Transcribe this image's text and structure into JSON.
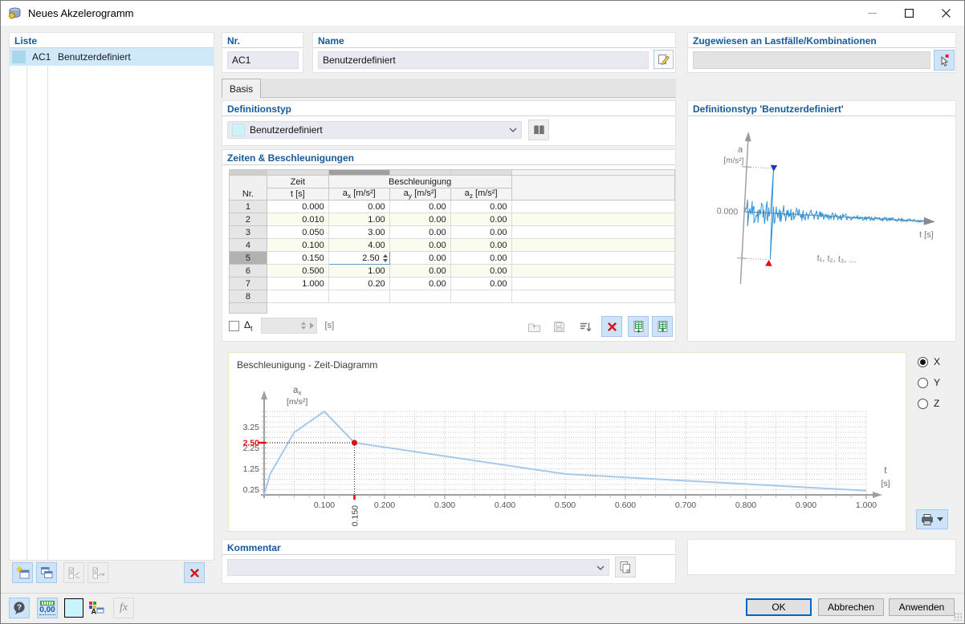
{
  "window": {
    "title": "Neues Akzelerogramm"
  },
  "list_panel": {
    "header": "Liste",
    "items": [
      {
        "id": "AC1",
        "name": "Benutzerdefiniert",
        "swatch_color": "#a9d7ee"
      }
    ]
  },
  "fields": {
    "nr": {
      "label": "Nr.",
      "value": "AC1"
    },
    "name": {
      "label": "Name",
      "value": "Benutzerdefiniert"
    },
    "assigned": {
      "label": "Zugewiesen an Lastfälle/Kombinationen",
      "value": ""
    }
  },
  "tab": {
    "label": "Basis"
  },
  "definition_type": {
    "header": "Definitionstyp",
    "selected": "Benutzerdefiniert"
  },
  "accel_table": {
    "header": "Zeiten & Beschleunigungen",
    "col_nr": "Nr.",
    "group_time": "Zeit",
    "col_time": "t [s]",
    "group_accel": "Beschleunigung",
    "cols_accel": [
      {
        "base": "a",
        "sub": "x",
        "unit": "[m/s²]"
      },
      {
        "base": "a",
        "sub": "y",
        "unit": "[m/s²]"
      },
      {
        "base": "a",
        "sub": "z",
        "unit": "[m/s²]"
      }
    ],
    "rows": [
      {
        "nr": "1",
        "t": "0.000",
        "ax": "0.00",
        "ay": "0.00",
        "az": "0.00"
      },
      {
        "nr": "2",
        "t": "0.010",
        "ax": "1.00",
        "ay": "0.00",
        "az": "0.00"
      },
      {
        "nr": "3",
        "t": "0.050",
        "ax": "3.00",
        "ay": "0.00",
        "az": "0.00"
      },
      {
        "nr": "4",
        "t": "0.100",
        "ax": "4.00",
        "ay": "0.00",
        "az": "0.00"
      },
      {
        "nr": "5",
        "t": "0.150",
        "ax": "2.50",
        "ay": "0.00",
        "az": "0.00"
      },
      {
        "nr": "6",
        "t": "0.500",
        "ax": "1.00",
        "ay": "0.00",
        "az": "0.00"
      },
      {
        "nr": "7",
        "t": "1.000",
        "ax": "0.20",
        "ay": "0.00",
        "az": "0.00"
      },
      {
        "nr": "8",
        "t": "",
        "ax": "",
        "ay": "",
        "az": ""
      }
    ],
    "selected_row": 5,
    "edit_value": "2.50"
  },
  "dt_row": {
    "symbol": "Δ",
    "sub": "t",
    "unit": "[s]",
    "checked": false,
    "value": ""
  },
  "type_preview": {
    "header": "Definitionstyp 'Benutzerdefiniert'",
    "ylabel_base": "a",
    "ylabel_unit": "[m/s²]",
    "zero_label": "0.000",
    "xlabel": "t [s]",
    "points_label": "t₁, t₂, t₃, ...",
    "wave_color": "#2e94d6",
    "max_marker_color": "#2038c8",
    "min_marker_color": "#e01010"
  },
  "diagram": {
    "title": "Beschleunigung - Zeit-Diagramm"
  },
  "axis_selector": {
    "options": [
      "X",
      "Y",
      "Z"
    ],
    "selected": "X"
  },
  "comment": {
    "header": "Kommentar",
    "value": ""
  },
  "dialog_buttons": {
    "ok": "OK",
    "cancel": "Abbrechen",
    "apply": "Anwenden"
  },
  "statusbar": {
    "help_glyph": "?",
    "units_label": "0,00",
    "display_glyph": "A",
    "fx_label": "fx"
  },
  "chart_data": {
    "type": "line",
    "title": "Beschleunigung - Zeit-Diagramm",
    "xlabel": "t [s]",
    "ylabel": "ax [m/s²]",
    "xlabel_base": "t",
    "xlabel_unit": "[s]",
    "ylabel_base": "a",
    "ylabel_sub": "x",
    "ylabel_unit": "[m/s²]",
    "x": [
      0.0,
      0.01,
      0.05,
      0.1,
      0.15,
      0.5,
      1.0
    ],
    "y": [
      0.0,
      1.0,
      3.0,
      4.0,
      2.5,
      1.0,
      0.2
    ],
    "xlim": [
      0,
      1.05
    ],
    "ylim": [
      0,
      4.5
    ],
    "xticks": [
      0.1,
      0.2,
      0.3,
      0.4,
      0.5,
      0.6,
      0.7,
      0.8,
      0.9,
      1.0
    ],
    "xtick_labels": [
      "0.100",
      "0.200",
      "0.300",
      "0.400",
      "0.500",
      "0.600",
      "0.700",
      "0.800",
      "0.900",
      "1.000"
    ],
    "yticks": [
      0.25,
      1.25,
      2.25,
      3.25
    ],
    "ytick_labels": [
      "0.25",
      "1.25",
      "2.25",
      "3.25"
    ],
    "minor_x_step": 0.025,
    "grid": "dotted",
    "grid_x_step": 0.05,
    "grid_y_step": 0.25,
    "grid_y_max": 4.0,
    "axis_x_max": 1.0,
    "line_color": "#a6c9ea",
    "highlight_point": {
      "x": 0.15,
      "y": 2.5,
      "x_label": "0.150",
      "y_label": "2.50",
      "color": "#dd1111"
    },
    "legend": "none"
  }
}
